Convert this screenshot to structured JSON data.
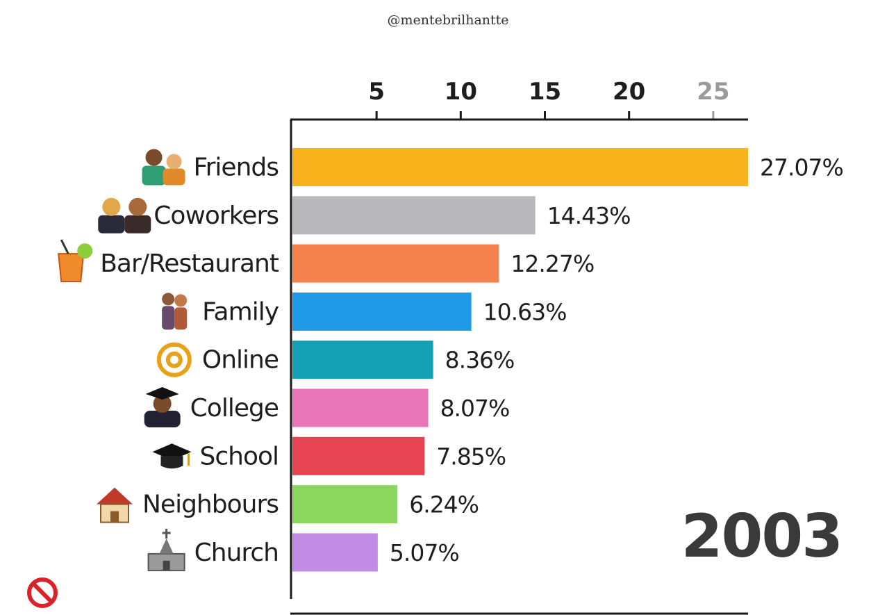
{
  "watermark": "@mentebrilhantte",
  "year_label": "2003",
  "chart_data": {
    "type": "bar",
    "orientation": "horizontal",
    "title": "",
    "xlabel": "",
    "ylabel": "",
    "xlim": [
      0,
      27.07
    ],
    "x_ticks": [
      5,
      10,
      15,
      20,
      25
    ],
    "grid": false,
    "value_suffix": "%",
    "categories": [
      "Friends",
      "Coworkers",
      "Bar/Restaurant",
      "Family",
      "Online",
      "College",
      "School",
      "Neighbours",
      "Church"
    ],
    "values": [
      27.07,
      14.43,
      12.27,
      10.63,
      8.36,
      8.07,
      7.85,
      6.24,
      5.07
    ],
    "value_labels": [
      "27.07%",
      "14.43%",
      "12.27%",
      "10.63%",
      "8.36%",
      "8.07%",
      "7.85%",
      "6.24%",
      "5.07%"
    ],
    "colors": [
      "#f7b21c",
      "#b8b8bc",
      "#f5814c",
      "#1f9ae6",
      "#14a0b4",
      "#e876b8",
      "#e64452",
      "#8ad65e",
      "#c38ce4"
    ],
    "icons": [
      "friends-icon",
      "coworkers-icon",
      "cocktail-icon",
      "family-icon",
      "at-sign-icon",
      "graduate-icon",
      "graduation-cap-icon",
      "house-icon",
      "church-icon"
    ]
  },
  "corner_icon": "prohibited-icon"
}
